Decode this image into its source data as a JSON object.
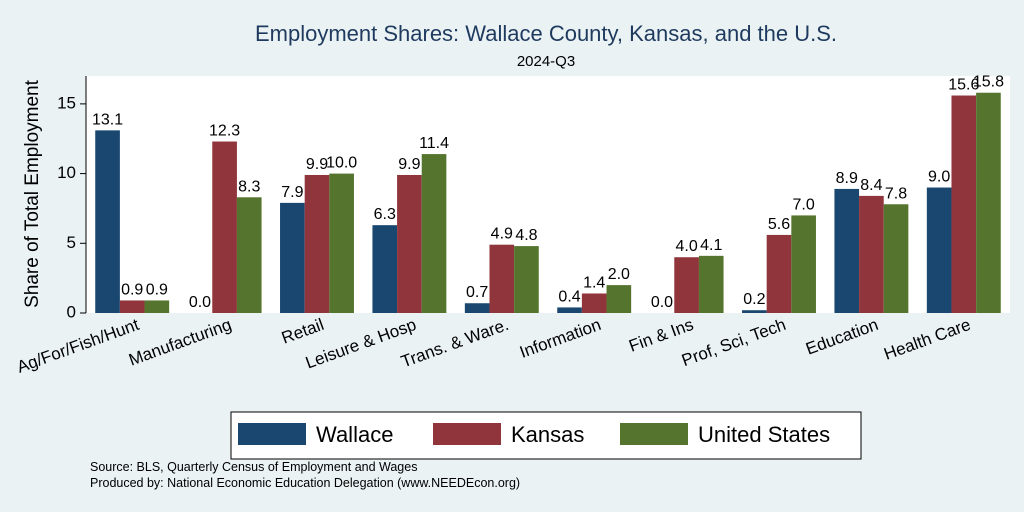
{
  "chart_data": {
    "type": "bar",
    "title": "Employment Shares: Wallace County, Kansas, and the U.S.",
    "subtitle": "2024-Q3",
    "ylabel": "Share of Total Employment",
    "xlabel": "",
    "ylim": [
      0,
      17
    ],
    "yticks": [
      0,
      5,
      10,
      15
    ],
    "grid": false,
    "legend_position": "bottom",
    "categories": [
      "Ag/For/Fish/Hunt",
      "Manufacturing",
      "Retail",
      "Leisure & Hosp",
      "Trans. & Ware.",
      "Information",
      "Fin & Ins",
      "Prof, Sci, Tech",
      "Education",
      "Health Care"
    ],
    "series": [
      {
        "name": "Wallace",
        "color": "#1a476f",
        "values": [
          13.1,
          0.0,
          7.9,
          6.3,
          0.7,
          0.4,
          0.0,
          0.2,
          8.9,
          9.0
        ]
      },
      {
        "name": "Kansas",
        "color": "#90353b",
        "values": [
          0.9,
          12.3,
          9.9,
          9.9,
          4.9,
          1.4,
          4.0,
          5.6,
          8.4,
          15.6
        ]
      },
      {
        "name": "United States",
        "color": "#55752f",
        "values": [
          0.9,
          8.3,
          10.0,
          11.4,
          4.8,
          2.0,
          4.1,
          7.0,
          7.8,
          15.8
        ]
      }
    ],
    "data_labels": [
      [
        "13.1",
        "0.0",
        "7.9",
        "6.3",
        "0.7",
        "0.4",
        "0.0",
        "0.2",
        "8.9",
        "9.0"
      ],
      [
        "0.9",
        "12.3",
        "9.9",
        "9.9",
        "4.9",
        "1.4",
        "4.0",
        "5.6",
        "8.4",
        "15.6"
      ],
      [
        "0.9",
        "8.3",
        "10.0",
        "11.4",
        "4.8",
        "2.0",
        "4.1",
        "7.0",
        "7.8",
        "15.8"
      ]
    ]
  },
  "footer": {
    "source": "Source: BLS, Quarterly Census of Employment and Wages",
    "produced_by": "Produced by: National Economic Education Delegation (www.NEEDEcon.org)"
  }
}
